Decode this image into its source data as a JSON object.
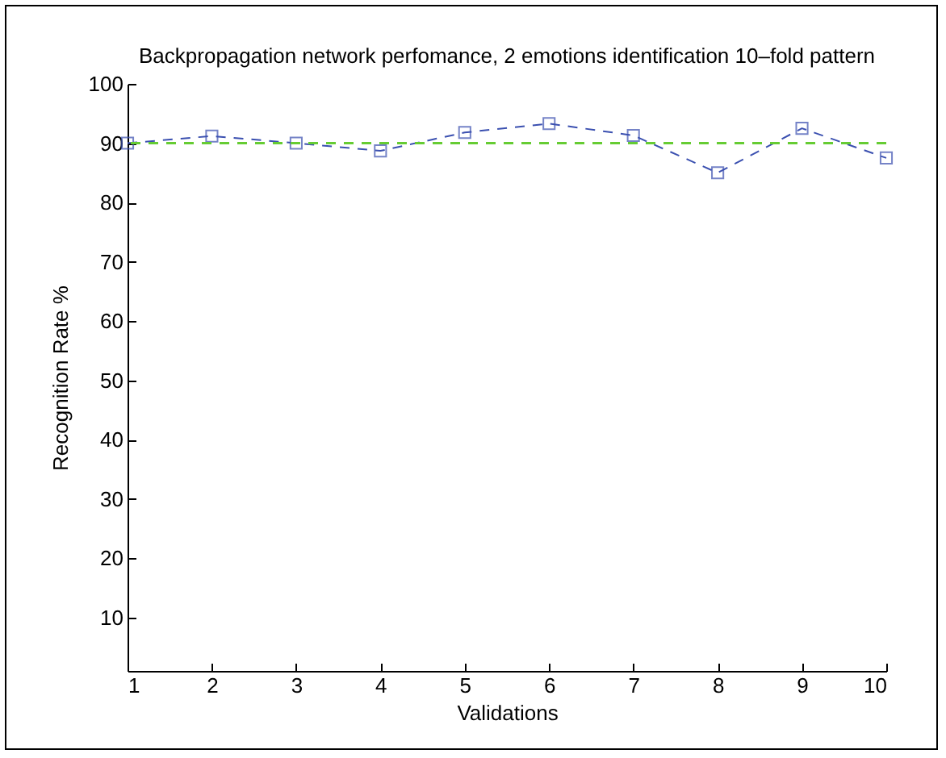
{
  "chart_data": {
    "type": "line",
    "title": "Backpropagation network perfomance, 2 emotions identification 10–fold pattern",
    "xlabel": "Validations",
    "ylabel": "Recognition Rate %",
    "x": [
      1,
      2,
      3,
      4,
      5,
      6,
      7,
      8,
      9,
      10
    ],
    "series": [
      {
        "color": "#3b50b0",
        "values": [
          90,
          91.2,
          90,
          88.7,
          91.8,
          93.3,
          91.3,
          85,
          92.5,
          87.5
        ]
      }
    ],
    "xlim": [
      1,
      10
    ],
    "xticks": [
      1,
      2,
      3,
      4,
      5,
      6,
      7,
      8,
      9,
      10
    ],
    "ylim": [
      1,
      100
    ],
    "yticks": [
      10,
      20,
      30,
      40,
      50,
      60,
      70,
      80,
      90,
      100
    ],
    "ref_lines": [
      {
        "axis": "y",
        "value": 90,
        "color": "#66cc33",
        "line_style": "dashed"
      }
    ],
    "marker": "square",
    "line_style": "dashed",
    "grid": false
  }
}
